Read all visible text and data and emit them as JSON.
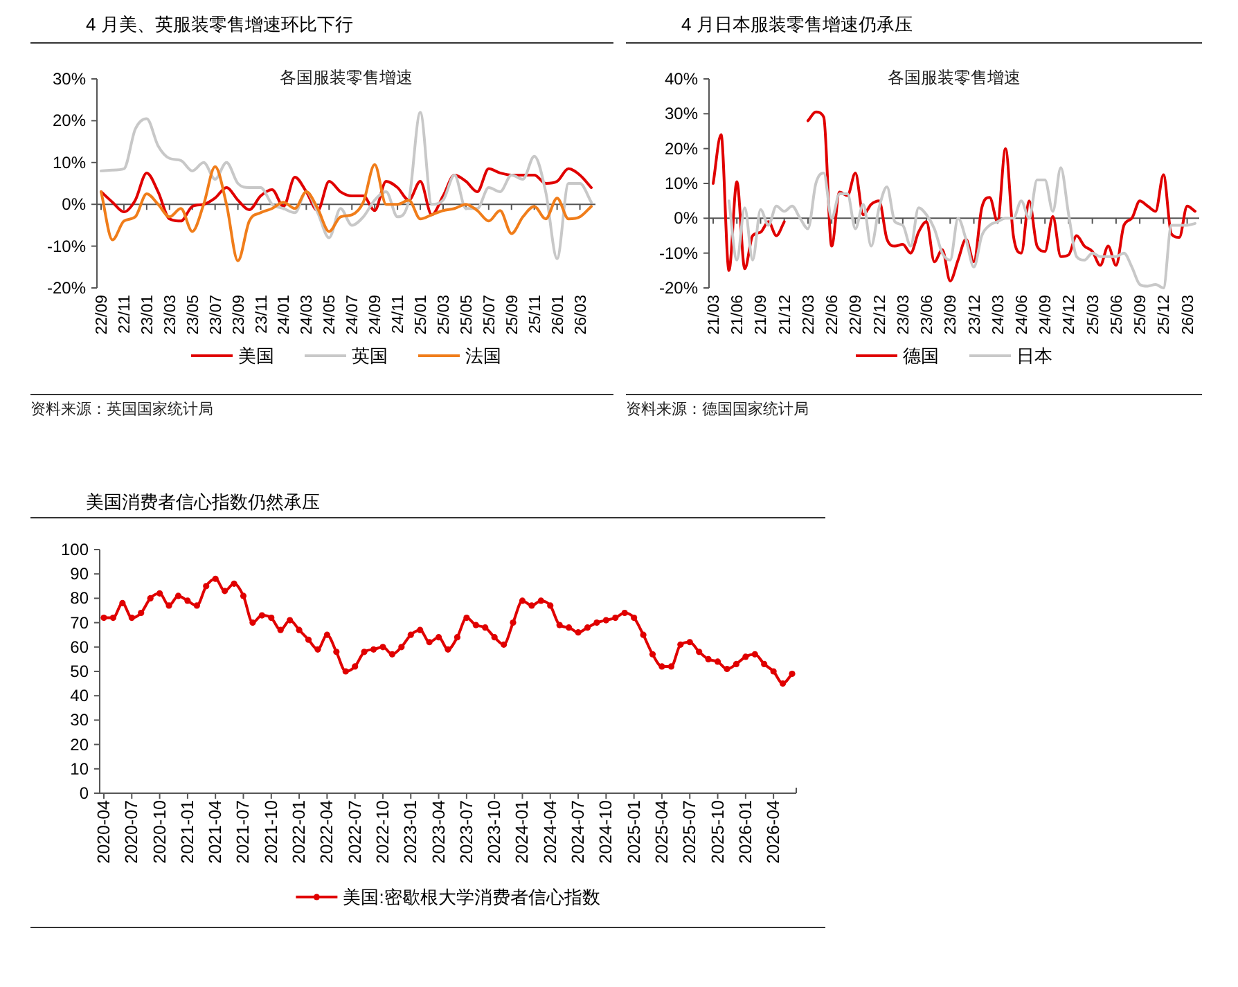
{
  "chart_data": [
    {
      "type": "line",
      "title": "4 月美、英服装零售增速环比下行",
      "subtitle": "各国服装零售增速",
      "annotations": [
        "资料来源：英国国家统计局"
      ],
      "legend": "bottom",
      "ylim": [
        -20,
        30
      ],
      "yticks": [
        {
          "value": 30,
          "label": "30%"
        },
        {
          "value": 20,
          "label": "20%"
        },
        {
          "value": 10,
          "label": "10%"
        },
        {
          "value": 0,
          "label": "0%"
        },
        {
          "value": -10,
          "label": "-10%"
        },
        {
          "value": -20,
          "label": "-20%"
        }
      ],
      "categories": [
        "22/09",
        null,
        "22/11",
        null,
        "23/01",
        null,
        "23/03",
        null,
        "23/05",
        null,
        "23/07",
        null,
        "23/09",
        null,
        "23/11",
        null,
        "24/01",
        null,
        "24/03",
        null,
        "24/05",
        null,
        "24/07",
        null,
        "24/09",
        null,
        "24/11",
        null,
        "25/01",
        null,
        "25/03",
        null,
        "25/05",
        null,
        "25/07",
        null,
        "25/09",
        null,
        "25/11",
        null,
        "26/01",
        null,
        "26/03",
        null
      ],
      "series": [
        {
          "name": "美国",
          "color": "#e00000",
          "values": [
            3,
            0.5,
            -1.8,
            1,
            7.5,
            3,
            -3.5,
            -4,
            -0.5,
            0,
            1.5,
            4,
            1,
            -1.3,
            2,
            3.5,
            -0.5,
            6.5,
            3,
            -1.5,
            5.5,
            3,
            2,
            2,
            -1.5,
            5.5,
            4,
            1,
            5.5,
            -2.5,
            2,
            7,
            5.5,
            3,
            8.5,
            7.5,
            7,
            7,
            7,
            5,
            5.5,
            8.5,
            7,
            4
          ]
        },
        {
          "name": "英国",
          "color": "#c8c8c8",
          "values": [
            8,
            8.2,
            8.5,
            18,
            20.5,
            14,
            11,
            10.5,
            8,
            10,
            6,
            10,
            5,
            4,
            4,
            0,
            -1,
            -2,
            3,
            -2,
            -8,
            -1,
            -5,
            -3,
            1,
            3,
            -3,
            1,
            22,
            0,
            1,
            7,
            -1,
            -1,
            4,
            3,
            7,
            6,
            11.5,
            3,
            -13,
            5,
            5,
            0.5
          ]
        },
        {
          "name": "法国",
          "color": "#f07d1a",
          "values": [
            3,
            -8.5,
            -4,
            -3,
            2.5,
            0,
            -3,
            -1,
            -6.5,
            0,
            9,
            0,
            -13.5,
            -4,
            -2,
            -1,
            0.5,
            -1,
            3,
            -1,
            -6.5,
            -3,
            -2.5,
            0.5,
            9.5,
            0,
            0,
            1,
            -3.5,
            -2.5,
            -1.5,
            -1,
            0,
            -1.5,
            -4,
            -1.5,
            -7,
            -3,
            -0.5,
            -3.5,
            1.5,
            -3.5,
            -3,
            -0.5
          ]
        }
      ]
    },
    {
      "type": "line",
      "title": "4 月日本服装零售增速仍承压",
      "subtitle": "各国服装零售增速",
      "annotations": [
        "资料来源：德国国家统计局"
      ],
      "legend": "bottom",
      "ylim": [
        -20,
        40
      ],
      "yticks": [
        {
          "value": 40,
          "label": "40%"
        },
        {
          "value": 30,
          "label": "30%"
        },
        {
          "value": 20,
          "label": "20%"
        },
        {
          "value": 10,
          "label": "10%"
        },
        {
          "value": 0,
          "label": "0%"
        },
        {
          "value": -10,
          "label": "-10%"
        },
        {
          "value": -20,
          "label": "-20%"
        }
      ],
      "categories": [
        "21/03",
        null,
        null,
        "21/06",
        null,
        null,
        "21/09",
        null,
        null,
        "21/12",
        null,
        null,
        "22/03",
        null,
        null,
        "22/06",
        null,
        null,
        "22/09",
        null,
        null,
        "22/12",
        null,
        null,
        "23/03",
        null,
        null,
        "23/06",
        null,
        null,
        "23/09",
        null,
        null,
        "23/12",
        null,
        null,
        "24/03",
        null,
        null,
        "24/06",
        null,
        null,
        "24/09",
        null,
        null,
        "24/12",
        null,
        null,
        "25/03",
        null,
        null,
        "25/06",
        null,
        null,
        "25/09",
        null,
        null,
        "25/12",
        null,
        null,
        "26/03",
        null
      ],
      "series": [
        {
          "name": "德国",
          "color": "#e00000",
          "values": [
            10,
            24,
            -15,
            10.5,
            -14.5,
            -5,
            -4,
            -1,
            -5,
            -1,
            null,
            null,
            28,
            30.5,
            29,
            -8,
            7.5,
            6.5,
            13,
            1,
            4,
            5,
            -6,
            -8,
            -7.5,
            -10,
            -4,
            -1,
            -12.5,
            -9,
            -18,
            -12,
            -6,
            -12.5,
            3,
            6,
            -1,
            20,
            -5,
            -10,
            5,
            -8,
            -9.5,
            0.5,
            -11,
            -10.5,
            -5,
            -8,
            -9.5,
            -13.5,
            -8,
            -13.5,
            -2,
            0,
            5,
            3.5,
            2,
            12.5,
            -4.5,
            -5.5,
            3.5,
            2
          ]
        },
        {
          "name": "日本",
          "color": "#c8c8c8",
          "values": [
            null,
            null,
            5,
            -12,
            3,
            -12,
            2.5,
            -2,
            3.5,
            2,
            3.5,
            0,
            -3,
            10,
            13,
            0,
            7,
            7,
            -3,
            4,
            -8,
            3,
            9,
            -1,
            -2,
            -8,
            3,
            1,
            -3,
            -10,
            -12,
            0,
            -6,
            -14,
            -5,
            -2,
            -1,
            0,
            0,
            5,
            0,
            11,
            11,
            2,
            14.5,
            1,
            -11,
            -12,
            -10,
            -11,
            -11,
            -11,
            -10,
            -14,
            -19,
            -19.5,
            -19,
            -20,
            -2,
            -2,
            -2,
            -1.5
          ]
        }
      ]
    },
    {
      "type": "line",
      "title": "美国消费者信心指数仍然承压",
      "legend": "bottom",
      "marker": "circle",
      "ylim": [
        0,
        100
      ],
      "yticks": [
        0,
        10,
        20,
        30,
        40,
        50,
        60,
        70,
        80,
        90,
        100
      ],
      "categories": [
        "2020-04",
        null,
        null,
        "2020-07",
        null,
        null,
        "2020-10",
        null,
        null,
        "2021-01",
        null,
        null,
        "2021-04",
        null,
        null,
        "2021-07",
        null,
        null,
        "2021-10",
        null,
        null,
        "2022-01",
        null,
        null,
        "2022-04",
        null,
        null,
        "2022-07",
        null,
        null,
        "2022-10",
        null,
        null,
        "2023-01",
        null,
        null,
        "2023-04",
        null,
        null,
        "2023-07",
        null,
        null,
        "2023-10",
        null,
        null,
        "2024-01",
        null,
        null,
        "2024-04",
        null,
        null,
        "2024-07",
        null,
        null,
        "2024-10",
        null,
        null,
        "2025-01",
        null,
        null,
        "2025-04",
        null,
        null,
        "2025-07",
        null,
        null,
        "2025-10",
        null,
        null,
        "2026-01",
        null,
        null,
        "2026-04",
        null,
        null
      ],
      "series": [
        {
          "name": "美国:密歇根大学消费者信心指数",
          "color": "#e00000",
          "values": [
            72,
            72,
            78,
            72,
            74,
            80,
            82,
            77,
            81,
            79,
            77,
            85,
            88,
            83,
            86,
            81,
            70,
            73,
            72,
            67,
            71,
            67,
            63,
            59,
            65,
            58,
            50,
            52,
            58,
            59,
            60,
            57,
            60,
            65,
            67,
            62,
            64,
            59,
            64,
            72,
            69,
            68,
            64,
            61,
            70,
            79,
            77,
            79,
            77,
            69,
            68,
            66,
            68,
            70,
            71,
            72,
            74,
            72,
            65,
            57,
            52,
            52,
            61,
            62,
            58,
            55,
            54,
            51,
            53,
            56,
            57,
            53,
            50,
            45,
            49
          ]
        }
      ]
    }
  ]
}
